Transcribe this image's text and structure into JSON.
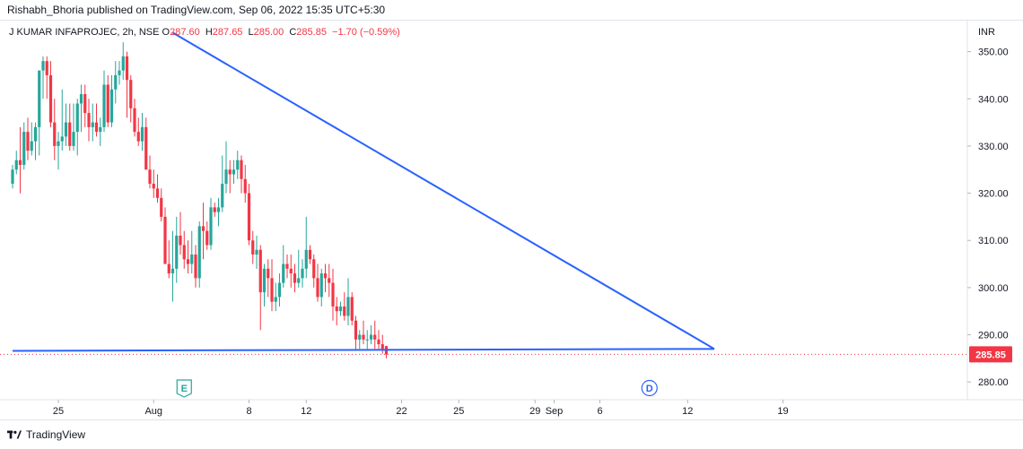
{
  "header": {
    "published": "Rishabh_Bhoria published on TradingView.com, Sep 06, 2022 15:35 UTC+5:30"
  },
  "legend": {
    "symbol": "J KUMAR INFAPROJEC, 2h, NSE",
    "o_label": "O",
    "o_value": "287.60",
    "h_label": "H",
    "h_value": "287.65",
    "l_label": "L",
    "l_value": "285.00",
    "c_label": "C",
    "c_value": "285.85",
    "change": "−1.70 (−0.59%)"
  },
  "currency": "INR",
  "footer": {
    "brand": "TradingView"
  },
  "colors": {
    "up": "#26a69a",
    "down": "#f23645",
    "trendline": "#2962ff",
    "price_tag": "#f23645",
    "grid": "#f0f3fa"
  },
  "chart_data": {
    "type": "candlestick",
    "title": "",
    "ylabel": "INR",
    "ylim": [
      277,
      356
    ],
    "y_ticks": [
      280,
      290,
      300,
      310,
      320,
      330,
      340,
      350
    ],
    "y_tick_labels": [
      "280.00",
      "290.00",
      "300.00",
      "310.00",
      "320.00",
      "330.00",
      "340.00",
      "350.00"
    ],
    "x_ticks": [
      {
        "label": "25",
        "bar": 12
      },
      {
        "label": "Aug",
        "bar": 37
      },
      {
        "label": "8",
        "bar": 62
      },
      {
        "label": "12",
        "bar": 77
      },
      {
        "label": "22",
        "bar": 102
      },
      {
        "label": "25",
        "bar": 117
      },
      {
        "label": "29",
        "bar": 137
      },
      {
        "label": "Sep",
        "bar": 142
      },
      {
        "label": "6",
        "bar": 154
      },
      {
        "label": "12",
        "bar": 177
      },
      {
        "label": "19",
        "bar": 202
      }
    ],
    "last_price": 285.85,
    "last_price_label": "285.85",
    "events": [
      {
        "label": "E",
        "bar": 45,
        "kind": "earnings"
      },
      {
        "label": "D",
        "bar": 167,
        "kind": "dividend"
      }
    ],
    "trendlines": [
      {
        "name": "descending-resistance",
        "from": {
          "bar": 42,
          "price": 354
        },
        "to": {
          "bar": 184,
          "price": 287
        }
      },
      {
        "name": "horizontal-support",
        "from": {
          "bar": 0,
          "price": 286.6
        },
        "to": {
          "bar": 184,
          "price": 287
        }
      }
    ],
    "candles": [
      [
        322,
        326,
        321,
        325
      ],
      [
        325,
        329,
        324,
        327
      ],
      [
        327,
        334,
        320,
        326
      ],
      [
        326,
        335,
        325,
        333
      ],
      [
        333,
        336,
        327,
        329
      ],
      [
        329,
        335,
        328,
        331
      ],
      [
        331,
        335,
        327,
        334
      ],
      [
        334,
        346,
        328,
        346
      ],
      [
        346,
        349,
        340,
        348
      ],
      [
        348,
        349,
        340,
        345
      ],
      [
        345,
        348,
        334,
        335
      ],
      [
        335,
        340,
        327,
        330
      ],
      [
        330,
        333,
        325,
        331
      ],
      [
        331,
        342,
        329,
        332
      ],
      [
        332,
        339,
        330,
        335
      ],
      [
        335,
        339,
        329,
        330
      ],
      [
        330,
        339,
        329,
        333
      ],
      [
        333,
        340,
        328,
        339
      ],
      [
        339,
        343,
        333,
        341
      ],
      [
        341,
        343,
        334,
        337
      ],
      [
        337,
        340,
        331,
        334
      ],
      [
        334,
        339,
        331,
        335
      ],
      [
        335,
        339,
        332,
        333
      ],
      [
        333,
        336,
        330,
        334
      ],
      [
        334,
        346,
        333,
        343
      ],
      [
        343,
        345,
        334,
        335
      ],
      [
        335,
        345,
        334,
        342
      ],
      [
        342,
        348,
        339,
        345
      ],
      [
        345,
        348,
        343,
        346
      ],
      [
        346,
        352,
        344,
        349
      ],
      [
        349,
        350,
        336,
        344
      ],
      [
        344,
        345,
        335,
        338
      ],
      [
        338,
        340,
        332,
        333
      ],
      [
        333,
        336,
        330,
        331
      ],
      [
        331,
        337,
        329,
        334
      ],
      [
        334,
        336,
        325,
        325
      ],
      [
        325,
        328,
        321,
        322
      ],
      [
        322,
        325,
        319,
        321
      ],
      [
        321,
        324,
        318,
        319
      ],
      [
        319,
        321,
        314,
        315
      ],
      [
        315,
        317,
        305,
        305
      ],
      [
        305,
        310,
        302,
        303
      ],
      [
        303,
        312,
        297,
        304
      ],
      [
        304,
        315,
        301,
        311
      ],
      [
        311,
        316,
        307,
        309
      ],
      [
        309,
        312,
        304,
        306
      ],
      [
        306,
        310,
        303,
        305
      ],
      [
        305,
        312,
        303,
        307
      ],
      [
        307,
        309,
        300,
        302
      ],
      [
        302,
        314,
        300,
        313
      ],
      [
        313,
        318,
        306,
        312
      ],
      [
        312,
        314,
        308,
        309
      ],
      [
        309,
        319,
        308,
        317
      ],
      [
        317,
        318,
        315,
        316
      ],
      [
        316,
        319,
        313,
        317
      ],
      [
        317,
        328,
        316,
        322
      ],
      [
        322,
        331,
        320,
        325
      ],
      [
        325,
        327,
        320,
        324
      ],
      [
        324,
        327,
        322,
        325
      ],
      [
        325,
        329,
        323,
        327
      ],
      [
        327,
        328,
        320,
        323
      ],
      [
        323,
        326,
        318,
        320
      ],
      [
        320,
        322,
        309,
        310
      ],
      [
        310,
        312,
        305,
        307
      ],
      [
        307,
        311,
        304,
        308
      ],
      [
        308,
        309,
        291,
        299
      ],
      [
        299,
        305,
        296,
        304
      ],
      [
        304,
        306,
        298,
        302
      ],
      [
        302,
        306,
        295,
        297
      ],
      [
        297,
        301,
        295,
        298
      ],
      [
        298,
        303,
        296,
        301
      ],
      [
        301,
        309,
        300,
        305
      ],
      [
        305,
        307,
        302,
        304
      ],
      [
        304,
        307,
        300,
        303
      ],
      [
        303,
        305,
        299,
        301
      ],
      [
        301,
        308,
        300,
        302
      ],
      [
        302,
        306,
        300,
        304
      ],
      [
        304,
        315,
        302,
        308
      ],
      [
        308,
        309,
        305,
        306
      ],
      [
        306,
        307,
        300,
        302
      ],
      [
        302,
        305,
        297,
        298
      ],
      [
        298,
        304,
        296,
        303
      ],
      [
        303,
        305,
        299,
        302
      ],
      [
        302,
        305,
        298,
        301
      ],
      [
        301,
        304,
        293,
        296
      ],
      [
        296,
        298,
        292,
        295
      ],
      [
        295,
        297,
        294,
        296
      ],
      [
        296,
        299,
        293,
        294
      ],
      [
        294,
        302,
        292,
        298
      ],
      [
        298,
        299,
        292,
        293
      ],
      [
        293,
        294,
        287,
        289
      ],
      [
        289,
        291,
        287,
        290
      ],
      [
        290,
        293,
        288,
        289
      ],
      [
        289,
        291,
        287,
        289
      ],
      [
        289,
        292,
        288,
        290
      ],
      [
        290,
        293,
        287,
        289
      ],
      [
        289,
        291,
        287,
        288
      ],
      [
        288,
        290,
        286,
        287
      ],
      [
        287.6,
        287.65,
        285.0,
        285.85
      ]
    ]
  }
}
